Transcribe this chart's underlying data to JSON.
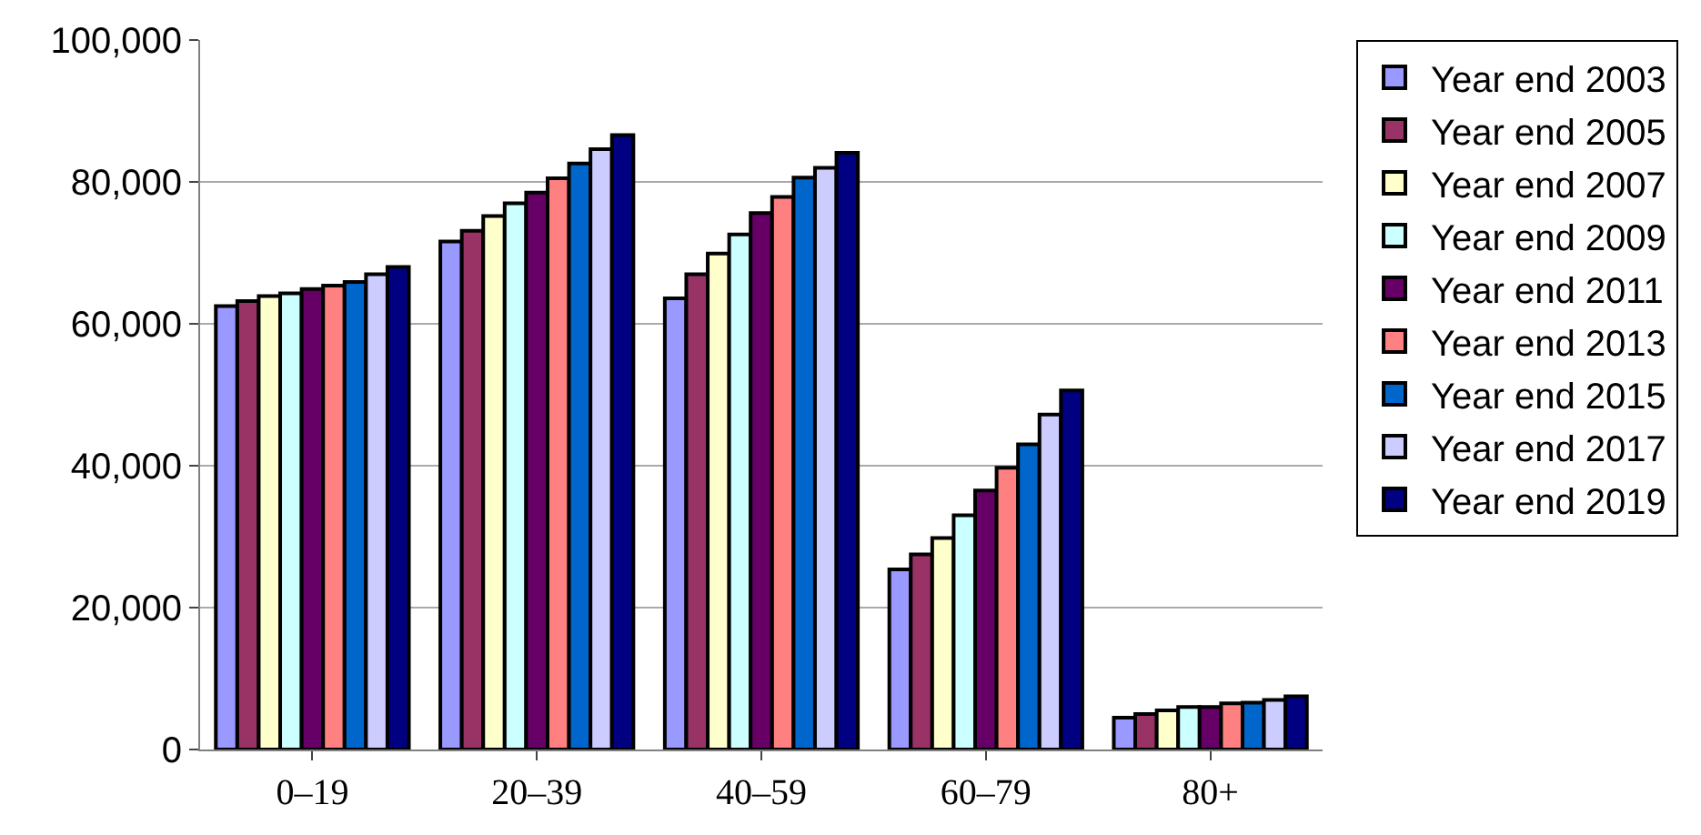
{
  "chart_data": {
    "type": "bar",
    "categories": [
      "0–19",
      "20–39",
      "40–59",
      "60–79",
      "80+"
    ],
    "series": [
      {
        "name": "Year end 2003",
        "color": "#9999ff",
        "values": [
          62500,
          71600,
          63600,
          25400,
          4500
        ]
      },
      {
        "name": "Year end 2005",
        "color": "#993366",
        "values": [
          63200,
          73100,
          67000,
          27500,
          5000
        ]
      },
      {
        "name": "Year end 2007",
        "color": "#ffffcc",
        "values": [
          63900,
          75200,
          69900,
          29800,
          5500
        ]
      },
      {
        "name": "Year end 2009",
        "color": "#ccffff",
        "values": [
          64300,
          77000,
          72600,
          33000,
          6000
        ]
      },
      {
        "name": "Year end 2011",
        "color": "#660066",
        "values": [
          64900,
          78500,
          75600,
          36500,
          6000
        ]
      },
      {
        "name": "Year end 2013",
        "color": "#ff8080",
        "values": [
          65400,
          80500,
          77900,
          39700,
          6500
        ]
      },
      {
        "name": "Year end 2015",
        "color": "#0066cc",
        "values": [
          65900,
          82600,
          80600,
          43000,
          6600
        ]
      },
      {
        "name": "Year end 2017",
        "color": "#ccccff",
        "values": [
          67000,
          84600,
          82000,
          47200,
          7000
        ]
      },
      {
        "name": "Year end 2019",
        "color": "#000080",
        "values": [
          68000,
          86600,
          84100,
          50600,
          7500
        ]
      }
    ],
    "ylim": [
      0,
      100000
    ],
    "yticks": [
      {
        "value": 0,
        "label": "0"
      },
      {
        "value": 20000,
        "label": "20,000"
      },
      {
        "value": 40000,
        "label": "40,000"
      },
      {
        "value": 60000,
        "label": "60,000"
      },
      {
        "value": 80000,
        "label": "80,000"
      },
      {
        "value": 100000,
        "label": "100,000"
      }
    ],
    "grid": "y",
    "legend": "right"
  }
}
